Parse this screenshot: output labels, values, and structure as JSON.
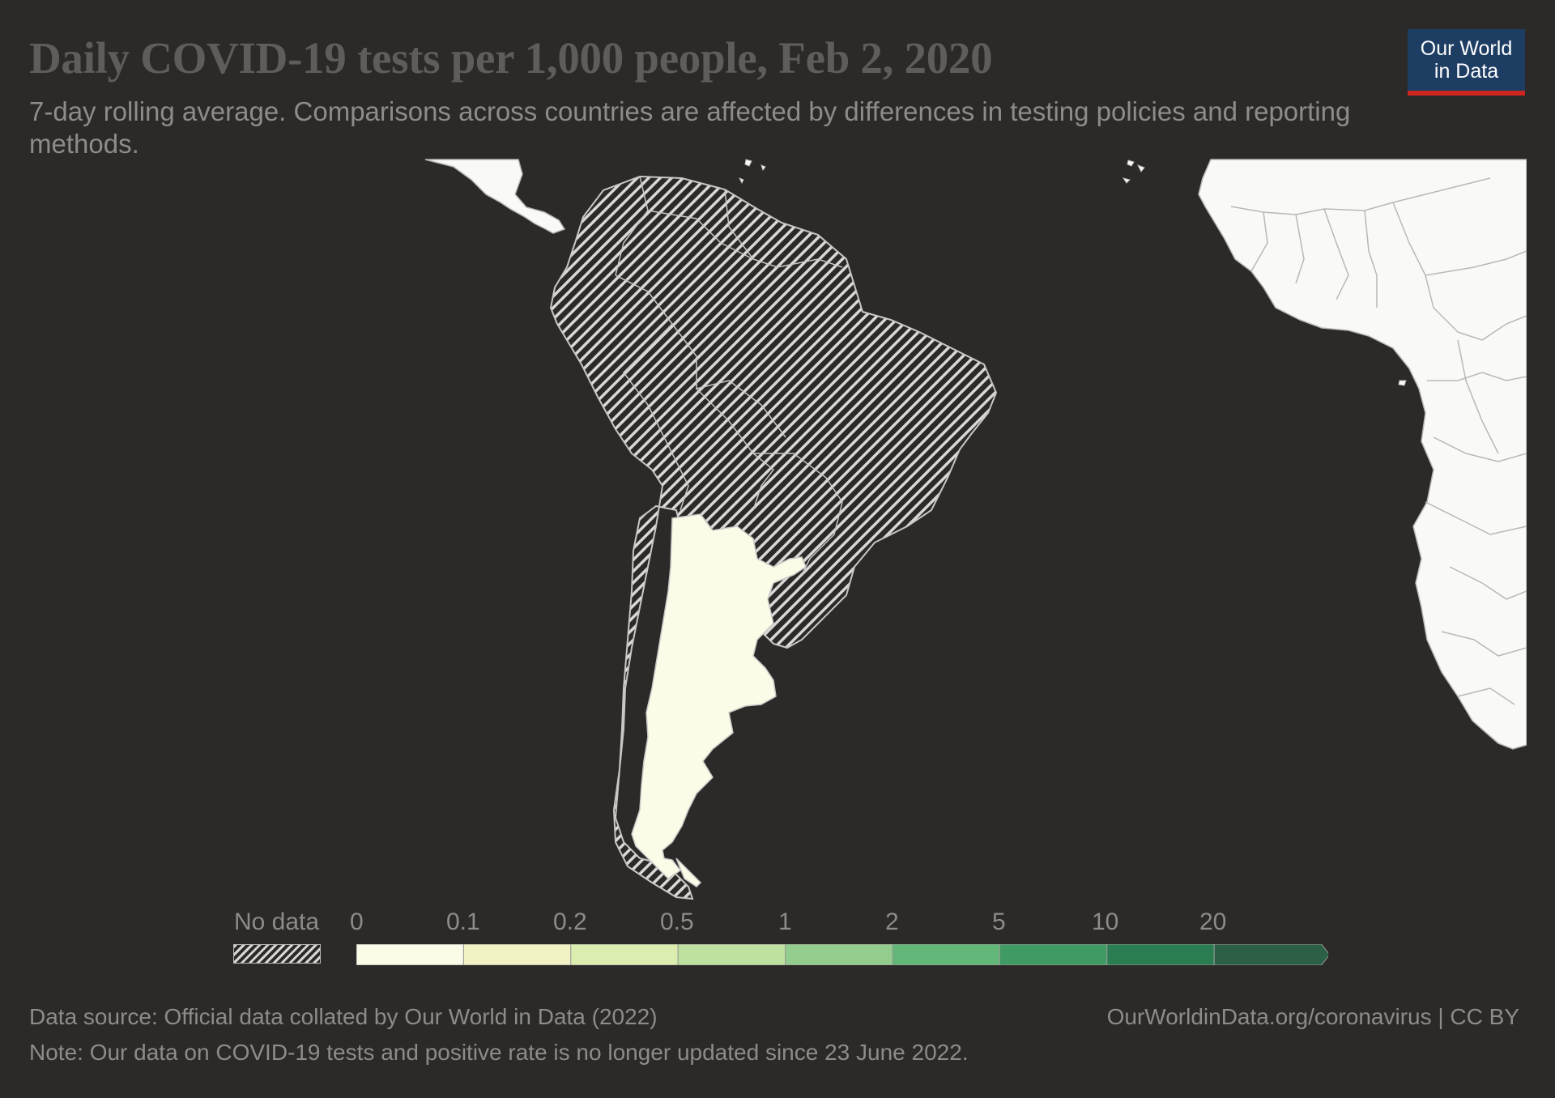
{
  "header": {
    "title": "Daily COVID-19 tests per 1,000 people, Feb 2, 2020",
    "subtitle": "7-day rolling average. Comparisons across countries are affected by differences in testing policies and reporting methods."
  },
  "logo": {
    "line1": "Our World",
    "line2": "in Data"
  },
  "legend": {
    "no_data_label": "No data",
    "ticks": [
      "0",
      "0.1",
      "0.2",
      "0.5",
      "1",
      "2",
      "5",
      "10",
      "20"
    ],
    "colors": [
      "#fbfbe7",
      "#f2f3c4",
      "#dcedb0",
      "#bfe1a0",
      "#92cd8e",
      "#62b678",
      "#3f9a63",
      "#2a7d51",
      "#2b5f46"
    ]
  },
  "map": {
    "regions_shown": [
      {
        "name": "Argentina",
        "status": "0",
        "color": "#fbfbe7"
      },
      {
        "name": "South America (other)",
        "status": "No data"
      },
      {
        "name": "Central America",
        "status": "not shaded"
      },
      {
        "name": "West Africa",
        "status": "not shaded"
      }
    ]
  },
  "footer": {
    "source": "Data source: Official data collated by Our World in Data (2022)",
    "note": "Note: Our data on COVID-19 tests and positive rate is no longer updated since 23 June 2022.",
    "url": "OurWorldinData.org/coronavirus | CC BY"
  }
}
